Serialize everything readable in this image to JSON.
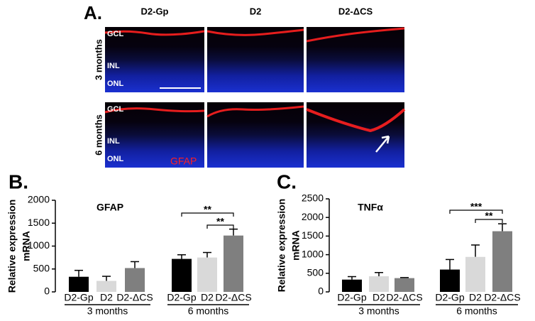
{
  "panel_a": {
    "label": "A.",
    "columns": [
      "D2-Gp",
      "D2",
      "D2-ΔCS"
    ],
    "rows": [
      "3 months",
      "6 months"
    ],
    "layers": [
      "GCL",
      "INL",
      "ONL"
    ],
    "stain": "GFAP"
  },
  "chart_data": [
    {
      "type": "bar",
      "label": "B.",
      "title": "GFAP",
      "ylabel": [
        "Relative expression",
        "mRNA"
      ],
      "categories": [
        "D2-Gp",
        "D2",
        "D2-ΔCS",
        "D2-Gp",
        "D2",
        "D2-ΔCS"
      ],
      "values": [
        330,
        240,
        520,
        720,
        750,
        1230
      ],
      "errors": [
        140,
        100,
        140,
        90,
        110,
        140
      ],
      "colors": [
        "#000000",
        "#d9d9d9",
        "#7f7f7f",
        "#000000",
        "#d9d9d9",
        "#7f7f7f"
      ],
      "group_labels": [
        "3 months",
        "6 months"
      ],
      "brackets": [
        "**",
        "**"
      ],
      "ylim": [
        0,
        2000
      ],
      "yticks": [
        0,
        500,
        1000,
        1500,
        2000
      ]
    },
    {
      "type": "bar",
      "label": "C.",
      "title": "TNFα",
      "ylabel": [
        "Relative expression",
        "mRNA"
      ],
      "categories": [
        "D2-Gp",
        "D2",
        "D2-ΔCS",
        "D2-Gp",
        "D2",
        "D2-ΔCS"
      ],
      "values": [
        330,
        420,
        370,
        600,
        940,
        1630
      ],
      "errors": [
        80,
        100,
        15,
        270,
        320,
        200
      ],
      "colors": [
        "#000000",
        "#d9d9d9",
        "#7f7f7f",
        "#000000",
        "#d9d9d9",
        "#7f7f7f"
      ],
      "group_labels": [
        "3 months",
        "6 months"
      ],
      "brackets": [
        "***",
        "**"
      ],
      "ylim": [
        0,
        2500
      ],
      "yticks": [
        0,
        500,
        1000,
        1500,
        2000,
        2500
      ]
    }
  ]
}
